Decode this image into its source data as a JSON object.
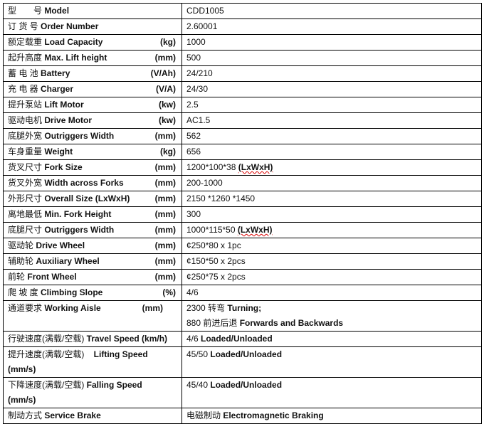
{
  "rows": [
    {
      "cn": "型　　号",
      "en": "Model",
      "unit": "",
      "value": "CDD1005",
      "value_bold": ""
    },
    {
      "cn": "订 货 号",
      "en": "Order Number",
      "unit": "",
      "value": "2.60001",
      "value_bold": ""
    },
    {
      "cn": "额定载重",
      "en": "Load Capacity",
      "unit": "(kg)",
      "value": "1000",
      "value_bold": ""
    },
    {
      "cn": "起升高度",
      "en": "Max. Lift height",
      "unit": "(mm)",
      "value": "500",
      "value_bold": ""
    },
    {
      "cn": "蓄 电 池",
      "en": "Battery",
      "unit": "(V/Ah)",
      "value": "24/210",
      "value_bold": ""
    },
    {
      "cn": "充 电 器",
      "en": "Charger",
      "unit": "(V/A)",
      "value": "24/30",
      "value_bold": ""
    },
    {
      "cn": "提升泵站",
      "en": "Lift Motor",
      "unit": "(kw)",
      "value": "2.5",
      "value_bold": ""
    },
    {
      "cn": "驱动电机",
      "en": "Drive Motor",
      "unit": "(kw)",
      "value": "AC1.5",
      "value_bold": ""
    },
    {
      "cn": "底腿外宽",
      "en": "Outriggers Width",
      "unit": "(mm)",
      "value": "562",
      "value_bold": ""
    },
    {
      "cn": "车身重量",
      "en": "Weight",
      "unit": "(kg)",
      "value": "656",
      "value_bold": ""
    },
    {
      "cn": "货叉尺寸",
      "en": "Fork Size",
      "unit": "(mm)",
      "value": "1200*100*38 ",
      "value_bold": "(LxWxH)"
    },
    {
      "cn": "货叉外宽",
      "en": " Width across Forks",
      "unit": "(mm)",
      "value": "200-1000",
      "value_bold": ""
    },
    {
      "cn": "外形尺寸",
      "en": "Overall Size (LxWxH)",
      "unit": "(mm)",
      "value": "2150 *1260 *1450",
      "value_bold": ""
    },
    {
      "cn": "离地最低",
      "en": "Min. Fork Height",
      "unit": "(mm)",
      "value": "300",
      "value_bold": ""
    },
    {
      "cn": "底腿尺寸",
      "en": " Outriggers Width",
      "unit": "(mm)",
      "value": "1000*115*50 ",
      "value_bold": "(LxWxH)"
    },
    {
      "cn": "驱动轮",
      "en": " Drive Wheel",
      "unit": "(mm)",
      "value": "¢250*80 x 1pc",
      "value_bold": ""
    },
    {
      "cn": "辅助轮",
      "en": "Auxiliary Wheel",
      "unit": "(mm)",
      "value": "¢150*50 x 2pcs",
      "value_bold": ""
    },
    {
      "cn": "前轮",
      "en": "Front Wheel",
      "unit": "(mm)",
      "value": "¢250*75 x 2pcs",
      "value_bold": ""
    },
    {
      "cn": "爬 坡 度",
      "en": "Climbing Slope",
      "unit": "(%)",
      "value": "4/6",
      "value_bold": ""
    }
  ],
  "aisle": {
    "cn": "通道要求",
    "en": "Working Aisle",
    "unit": "(mm)",
    "line1": "2300 转弯 ",
    "line1_bold": "Turning;",
    "line2": "880 前进后退 ",
    "line2_bold": "Forwards and Backwards"
  },
  "travel": {
    "cn": "行驶速度(满载/空载)",
    "en": "Travel Speed (km/h)",
    "value": "4/6 ",
    "value_bold": "Loaded/Unloaded"
  },
  "lifting": {
    "cn": "提升速度(满载/空载)",
    "en": "Lifting Speed",
    "unit": "(mm/s)",
    "value": "45/50 ",
    "value_bold": "Loaded/Unloaded"
  },
  "falling": {
    "cn": "下降速度(满载/空载)",
    "en": "Falling Speed",
    "unit": "(mm/s)",
    "value": "45/40 ",
    "value_bold": "Loaded/Unloaded"
  },
  "brake": {
    "cn": "制动方式",
    "en": "Service Brake",
    "value": "电磁制动 ",
    "value_bold": "Electromagnetic Braking"
  }
}
